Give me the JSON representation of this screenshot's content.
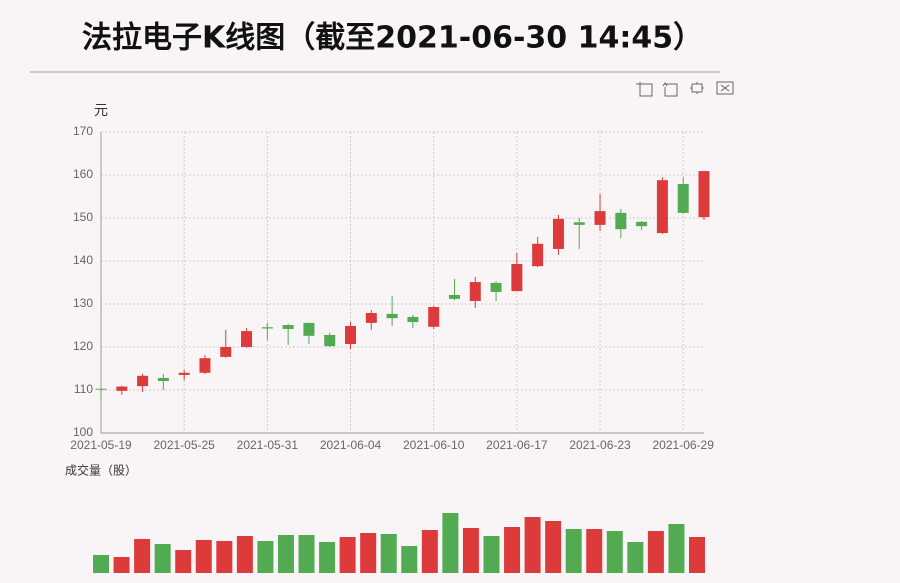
{
  "chart_data": [
    {
      "type": "candlestick",
      "title": "法拉电子K线图（截至2021-06-30 14:45）",
      "y_label": "元",
      "categories": [
        "2021-05-19",
        null,
        null,
        null,
        "2021-05-25",
        null,
        null,
        null,
        "2021-05-31",
        null,
        null,
        null,
        "2021-06-04",
        null,
        null,
        null,
        "2021-06-10",
        null,
        null,
        null,
        "2021-06-17",
        null,
        null,
        null,
        "2021-06-23",
        null,
        null,
        null,
        "2021-06-29",
        null
      ],
      "open": [
        110.3,
        109.8,
        110.9,
        112.8,
        113.5,
        114,
        117.7,
        120,
        124.6,
        125.1,
        125.6,
        122.8,
        120.7,
        125.6,
        127.7,
        127,
        124.7,
        132.1,
        130.7,
        134.9,
        133,
        138.8,
        142.8,
        149,
        148.4,
        151.2,
        149.1,
        146.5,
        157.9,
        150.2
      ],
      "close": [
        110.1,
        110.8,
        113.3,
        112.1,
        114,
        117.4,
        120,
        123.7,
        124.3,
        124.2,
        122.6,
        120.2,
        124.9,
        127.9,
        126.7,
        125.8,
        129.3,
        131.2,
        135.1,
        132.8,
        139.3,
        144,
        149.8,
        148.4,
        151.6,
        147.4,
        148.1,
        158.8,
        151.2,
        160.9
      ],
      "low": [
        107.7,
        108.9,
        109.5,
        110,
        112.3,
        113.7,
        117.5,
        119.8,
        121.6,
        120.5,
        120.7,
        120,
        119.5,
        124,
        124.9,
        124.4,
        124.2,
        130.9,
        129.1,
        130.7,
        133,
        138.6,
        141.4,
        142.8,
        147,
        145.3,
        147.2,
        146.3,
        151,
        149.5
      ],
      "high": [
        110.5,
        111,
        113.8,
        113.7,
        114.7,
        118.1,
        124,
        124.4,
        125.6,
        125.4,
        125.7,
        123.3,
        125.8,
        128.6,
        131.9,
        127.5,
        129.5,
        135.8,
        136.3,
        135.3,
        141.9,
        145.6,
        150.7,
        150,
        155.6,
        152.1,
        149.3,
        159.5,
        159.5,
        161
      ],
      "up_color": "#dd3b3b",
      "down_color": "#52ab52",
      "ylim": [
        100,
        170
      ],
      "yticks": [
        100,
        110,
        120,
        130,
        140,
        150,
        160,
        170
      ],
      "grid": true
    },
    {
      "type": "bar",
      "y_label": "成交量（股）",
      "values": [
        18,
        16,
        34,
        29,
        23,
        33,
        32,
        37,
        32,
        38,
        38,
        31,
        36,
        40,
        39,
        27,
        43,
        60,
        45,
        37,
        46,
        56,
        52,
        44,
        44,
        42,
        31,
        42,
        49,
        36
      ]
    }
  ]
}
